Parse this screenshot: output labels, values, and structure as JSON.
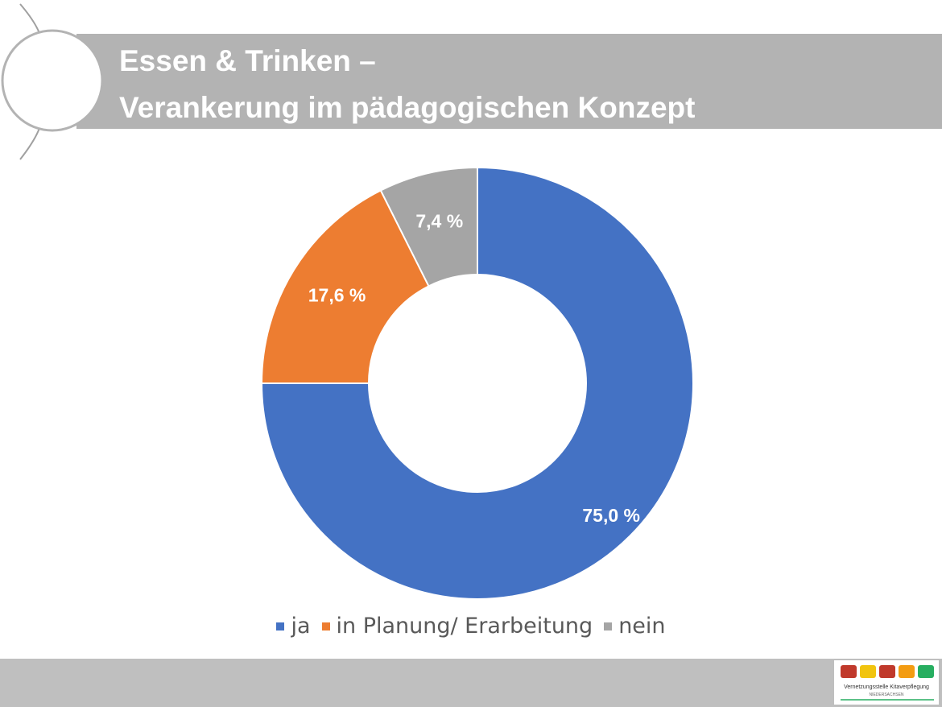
{
  "chart_data": {
    "type": "donut",
    "title": [
      "Essen & Trinken –",
      "Verankerung im pädagogischen Konzept"
    ],
    "categories": [
      "ja",
      "in Planung/ Erarbeitung",
      "nein"
    ],
    "values": [
      75.0,
      17.6,
      7.4
    ],
    "value_labels": [
      "75,0 %",
      "17,6 %",
      "7,4 %"
    ],
    "colors": [
      "#4472c4",
      "#ed7d31",
      "#a5a5a5"
    ],
    "legend": "bottom"
  },
  "logo": {
    "name": "Vernetzungsstelle Kitaverpflegung",
    "region": "NIEDERSACHSEN"
  }
}
